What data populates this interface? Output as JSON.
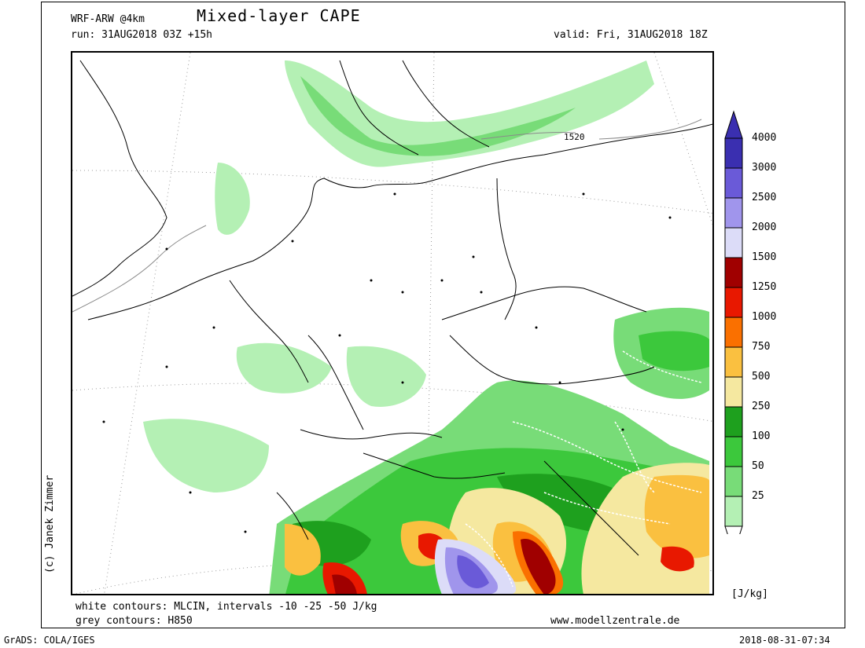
{
  "header": {
    "model": "WRF-ARW @4km",
    "title": "Mixed-layer CAPE",
    "run": "run: 31AUG2018 03Z +15h",
    "valid": "valid: Fri, 31AUG2018 18Z"
  },
  "map": {
    "contour_label": "1520"
  },
  "footer": {
    "line1": "white contours: MLCIN, intervals -10 -25 -50 J/kg",
    "line2": "grey contours: H850",
    "website": "www.modellzentrale.de",
    "software": "GrADS: COLA/IGES",
    "timestamp": "2018-08-31-07:34",
    "copyright": "(c) Janek Zimmer"
  },
  "legend": {
    "unit": "[J/kg]",
    "levels": [
      {
        "label": "4000",
        "color": "#3a2fb0"
      },
      {
        "label": "3000",
        "color": "#6a5ad8"
      },
      {
        "label": "2500",
        "color": "#a095ec"
      },
      {
        "label": "2000",
        "color": "#dcdcf8"
      },
      {
        "label": "1500",
        "color": "#a00000"
      },
      {
        "label": "1250",
        "color": "#e81800"
      },
      {
        "label": "1000",
        "color": "#fa7000"
      },
      {
        "label": "750",
        "color": "#fac040"
      },
      {
        "label": "500",
        "color": "#f5e8a0"
      },
      {
        "label": "250",
        "color": "#1ea01e"
      },
      {
        "label": "100",
        "color": "#3cc83c"
      },
      {
        "label": "50",
        "color": "#78dc78"
      },
      {
        "label": "25",
        "color": "#b4f0b4"
      }
    ],
    "top_cap_color": "#3a2fb0"
  }
}
